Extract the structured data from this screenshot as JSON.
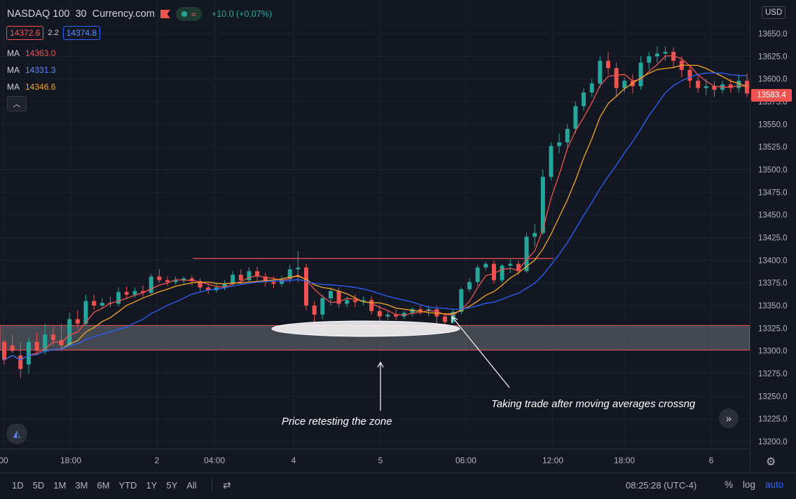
{
  "header": {
    "symbol": "NASDAQ 100",
    "interval": "30",
    "source": "Currency.com",
    "change": "+10.0 (+0.07%)"
  },
  "quote": {
    "bid": "14372.6",
    "spread": "2.2",
    "ask": "14374.8"
  },
  "ma_indicators": [
    {
      "label": "MA",
      "value": "14363.0",
      "color": "#ef5350"
    },
    {
      "label": "MA",
      "value": "14331.3",
      "color": "#2962ff"
    },
    {
      "label": "MA",
      "value": "14346.6",
      "color": "#f5a623"
    }
  ],
  "price_scale": {
    "currency": "USD",
    "last_price": "13583.4",
    "ticks": [
      "13650.0",
      "13625.0",
      "13600.0",
      "13575.0",
      "13550.0",
      "13525.0",
      "13500.0",
      "13475.0",
      "13450.0",
      "13425.0",
      "13400.0",
      "13375.0",
      "13350.0",
      "13325.0",
      "13300.0",
      "13275.0",
      "13250.0",
      "13225.0",
      "13200.0"
    ]
  },
  "time_axis": [
    "00",
    "18:00",
    "2",
    "04:00",
    "4",
    "5",
    "06:00",
    "12:00",
    "18:00",
    "6"
  ],
  "bottom_bar": {
    "ranges": [
      "1D",
      "5D",
      "1M",
      "3M",
      "6M",
      "YTD",
      "1Y",
      "5Y",
      "All"
    ],
    "clock": "08:25:28 (UTC-4)",
    "percent": "%",
    "log": "log",
    "auto": "auto"
  },
  "icons": {
    "settings": "gear-icon",
    "compare": "compare-icon",
    "scroll": "scroll-forward-icon",
    "collapse": "chevron-up-icon",
    "logo": "tradingview-logo-icon"
  },
  "colors": {
    "up": "#26a69a",
    "down": "#ef5350",
    "ma_fast": "#ef5350",
    "ma_mid": "#f5a623",
    "ma_slow": "#2962ff",
    "bg": "#131722"
  },
  "chart_data": {
    "type": "candlestick",
    "ylim": [
      13190,
      13660
    ],
    "support_zone": [
      13301,
      13328
    ],
    "resistance_line": 13402,
    "annotations": [
      {
        "text": "Price retesting the zone"
      },
      {
        "text": "Taking trade after moving averages crossng"
      }
    ],
    "candles": [
      [
        13310,
        13312,
        13290,
        13285
      ],
      [
        13306,
        13318,
        13300,
        13298
      ],
      [
        13295,
        13310,
        13280,
        13270
      ],
      [
        13285,
        13315,
        13310,
        13275
      ],
      [
        13310,
        13320,
        13300,
        13295
      ],
      [
        13300,
        13330,
        13318,
        13296
      ],
      [
        13318,
        13326,
        13312,
        13305
      ],
      [
        13312,
        13330,
        13306,
        13300
      ],
      [
        13306,
        13342,
        13335,
        13305
      ],
      [
        13335,
        13345,
        13330,
        13325
      ],
      [
        13330,
        13362,
        13355,
        13328
      ],
      [
        13355,
        13362,
        13350,
        13345
      ],
      [
        13350,
        13358,
        13353,
        13346
      ],
      [
        13353,
        13360,
        13352,
        13348
      ],
      [
        13352,
        13370,
        13365,
        13349
      ],
      [
        13365,
        13371,
        13362,
        13358
      ],
      [
        13362,
        13370,
        13366,
        13359
      ],
      [
        13366,
        13372,
        13364,
        13360
      ],
      [
        13364,
        13385,
        13382,
        13362
      ],
      [
        13382,
        13390,
        13378,
        13375
      ],
      [
        13378,
        13382,
        13376,
        13372
      ],
      [
        13376,
        13382,
        13378,
        13373
      ],
      [
        13378,
        13382,
        13380,
        13374
      ],
      [
        13380,
        13383,
        13377,
        13372
      ],
      [
        13377,
        13380,
        13370,
        13365
      ],
      [
        13370,
        13375,
        13367,
        13363
      ],
      [
        13367,
        13374,
        13370,
        13364
      ],
      [
        13370,
        13378,
        13374,
        13367
      ],
      [
        13374,
        13388,
        13384,
        13372
      ],
      [
        13384,
        13390,
        13378,
        13374
      ],
      [
        13378,
        13392,
        13388,
        13376
      ],
      [
        13388,
        13393,
        13382,
        13376
      ],
      [
        13382,
        13386,
        13376,
        13371
      ],
      [
        13376,
        13382,
        13374,
        13369
      ],
      [
        13374,
        13383,
        13379,
        13371
      ],
      [
        13379,
        13395,
        13390,
        13375
      ],
      [
        13390,
        13410,
        13392,
        13376
      ],
      [
        13392,
        13396,
        13350,
        13345
      ],
      [
        13350,
        13355,
        13340,
        13330
      ],
      [
        13340,
        13362,
        13358,
        13335
      ],
      [
        13358,
        13370,
        13366,
        13350
      ],
      [
        13366,
        13370,
        13352,
        13348
      ],
      [
        13352,
        13360,
        13356,
        13348
      ],
      [
        13356,
        13362,
        13354,
        13348
      ],
      [
        13354,
        13360,
        13356,
        13350
      ],
      [
        13356,
        13360,
        13344,
        13340
      ],
      [
        13344,
        13350,
        13338,
        13333
      ],
      [
        13338,
        13345,
        13340,
        13334
      ],
      [
        13340,
        13346,
        13338,
        13334
      ],
      [
        13338,
        13344,
        13342,
        13335
      ],
      [
        13342,
        13348,
        13346,
        13338
      ],
      [
        13346,
        13350,
        13344,
        13340
      ],
      [
        13344,
        13350,
        13346,
        13338
      ],
      [
        13346,
        13350,
        13338,
        13330
      ],
      [
        13338,
        13342,
        13332,
        13328
      ],
      [
        13332,
        13345,
        13343,
        13330
      ],
      [
        13343,
        13370,
        13368,
        13340
      ],
      [
        13368,
        13380,
        13376,
        13365
      ],
      [
        13376,
        13395,
        13392,
        13372
      ],
      [
        13392,
        13398,
        13396,
        13388
      ],
      [
        13396,
        13400,
        13378,
        13374
      ],
      [
        13378,
        13396,
        13394,
        13375
      ],
      [
        13394,
        13402,
        13396,
        13386
      ],
      [
        13396,
        13400,
        13388,
        13384
      ],
      [
        13388,
        13430,
        13426,
        13386
      ],
      [
        13426,
        13440,
        13430,
        13415
      ],
      [
        13430,
        13500,
        13492,
        13428
      ],
      [
        13492,
        13530,
        13526,
        13488
      ],
      [
        13526,
        13540,
        13530,
        13518
      ],
      [
        13530,
        13550,
        13545,
        13525
      ],
      [
        13545,
        13575,
        13570,
        13540
      ],
      [
        13570,
        13590,
        13585,
        13565
      ],
      [
        13585,
        13600,
        13595,
        13580
      ],
      [
        13595,
        13625,
        13620,
        13590
      ],
      [
        13620,
        13630,
        13612,
        13605
      ],
      [
        13612,
        13618,
        13590,
        13580
      ],
      [
        13590,
        13602,
        13598,
        13585
      ],
      [
        13598,
        13605,
        13592,
        13584
      ],
      [
        13592,
        13625,
        13618,
        13588
      ],
      [
        13618,
        13630,
        13625,
        13610
      ],
      [
        13625,
        13636,
        13628,
        13618
      ],
      [
        13628,
        13636,
        13630,
        13620
      ],
      [
        13630,
        13635,
        13620,
        13612
      ],
      [
        13620,
        13625,
        13610,
        13602
      ],
      [
        13610,
        13615,
        13598,
        13590
      ],
      [
        13598,
        13605,
        13590,
        13585
      ],
      [
        13590,
        13600,
        13592,
        13582
      ],
      [
        13592,
        13598,
        13588,
        13580
      ],
      [
        13588,
        13598,
        13594,
        13584
      ],
      [
        13594,
        13600,
        13590,
        13585
      ],
      [
        13590,
        13605,
        13598,
        13585
      ],
      [
        13598,
        13606,
        13584,
        13580
      ]
    ]
  }
}
